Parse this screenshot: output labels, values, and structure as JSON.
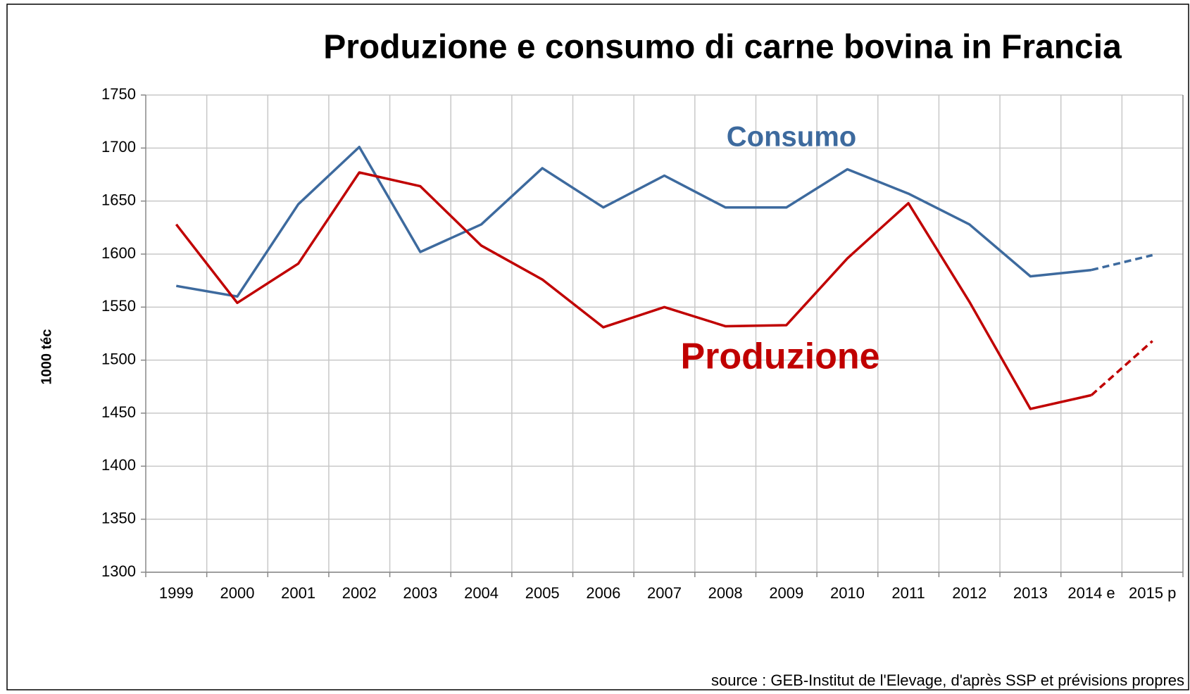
{
  "chart_data": {
    "type": "line",
    "title": "Produzione e consumo di carne bovina in Francia",
    "y_label": "1000 téc",
    "source": "source : GEB-Institut de l'Elevage, d'après SSP et prévisions propres",
    "categories": [
      "1999",
      "2000",
      "2001",
      "2002",
      "2003",
      "2004",
      "2005",
      "2006",
      "2007",
      "2008",
      "2009",
      "2010",
      "2011",
      "2012",
      "2013",
      "2014 e",
      "2015 p"
    ],
    "series": [
      {
        "name": "Consumo",
        "color": "#3d6a9e",
        "values": [
          1570,
          1560,
          1647,
          1701,
          1602,
          1628,
          1681,
          1644,
          1674,
          1644,
          1644,
          1680,
          1657,
          1628,
          1579,
          1585,
          1599
        ]
      },
      {
        "name": "Produzione",
        "color": "#c00000",
        "values": [
          1628,
          1554,
          1591,
          1677,
          1664,
          1608,
          1576,
          1531,
          1550,
          1532,
          1533,
          1596,
          1648,
          1555,
          1454,
          1467,
          1518
        ]
      }
    ],
    "dashed_from": "2014 e",
    "ylim": [
      1300,
      1750
    ],
    "yticks": [
      1300,
      1350,
      1400,
      1450,
      1500,
      1550,
      1600,
      1650,
      1700,
      1750
    ],
    "grid": true
  }
}
